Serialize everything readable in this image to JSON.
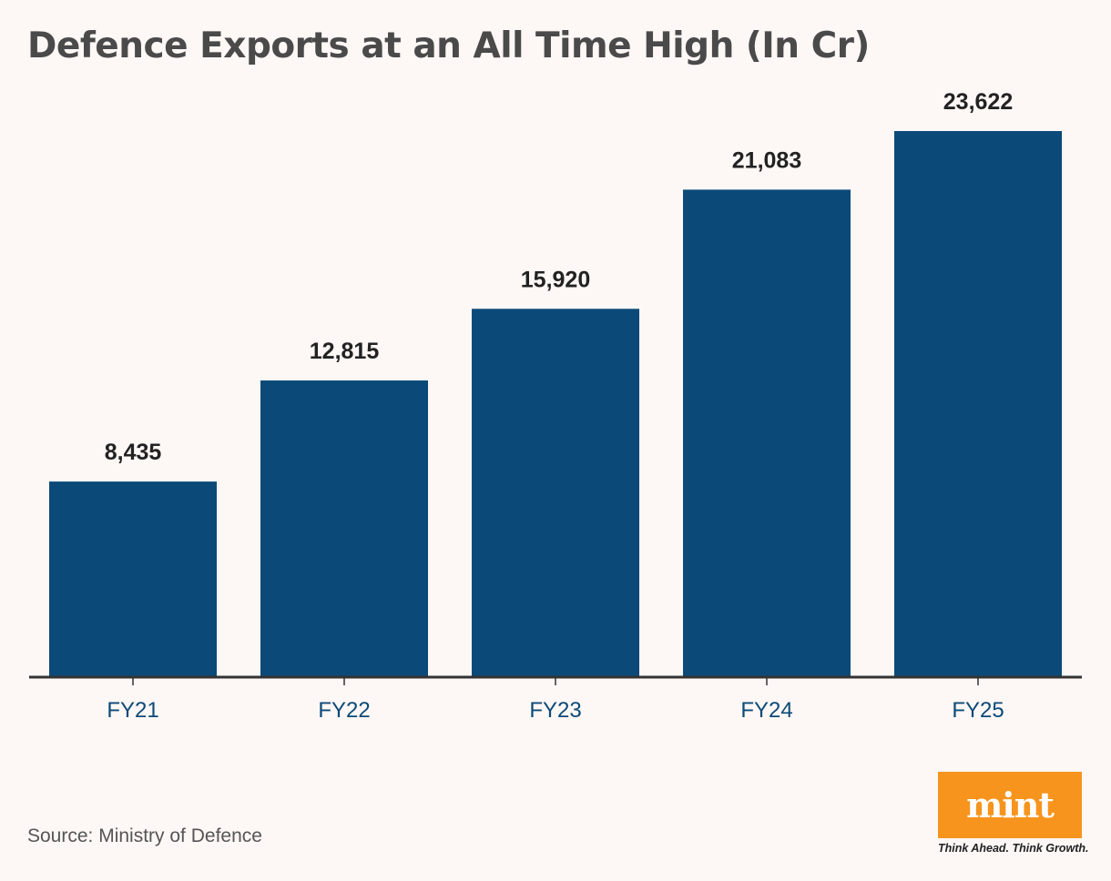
{
  "title": "Defence Exports at an All Time High (In Cr)",
  "source": "Source: Ministry of Defence",
  "logo": {
    "word": "mint",
    "tagline": "Think Ahead. Think Growth."
  },
  "colors": {
    "bar": "#0b4a78",
    "axis": "#333333",
    "tick_label": "#0b4a78",
    "value_label": "#222222",
    "logo": "#f7941d",
    "background": "#fdf7f5"
  },
  "chart_data": {
    "type": "bar",
    "title": "Defence Exports at an All Time High (In Cr)",
    "categories": [
      "FY21",
      "FY22",
      "FY23",
      "FY24",
      "FY25"
    ],
    "values": [
      8435,
      12815,
      15920,
      21083,
      23622
    ],
    "value_labels": [
      "8,435",
      "12,815",
      "15,920",
      "21,083",
      "23,622"
    ],
    "xlabel": "",
    "ylabel": "",
    "ylim": [
      0,
      25000
    ],
    "grid": false,
    "legend": "none"
  }
}
